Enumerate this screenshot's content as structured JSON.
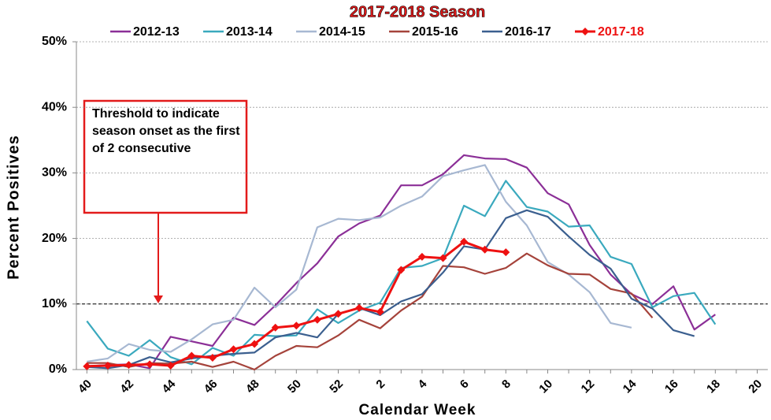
{
  "chart_data": {
    "type": "line",
    "subtitle": "2017-2018 Season",
    "x_label": "Calendar Week",
    "y_label": "Percent Positives",
    "annotation": "Threshold to indicate season onset as the first of 2 consecutive",
    "threshold": 10,
    "categories": [
      "40",
      null,
      "42",
      null,
      "44",
      null,
      "46",
      null,
      "48",
      null,
      "50",
      null,
      "52",
      null,
      "2",
      null,
      "4",
      null,
      "6",
      null,
      "8",
      null,
      "10",
      null,
      "12",
      null,
      "14",
      null,
      "16",
      null,
      "18",
      null,
      "20"
    ],
    "ylim": [
      0,
      50
    ],
    "yticks": [
      {
        "value": 0,
        "label": "0%"
      },
      {
        "value": 10,
        "label": "10%"
      },
      {
        "value": 20,
        "label": "20%"
      },
      {
        "value": 30,
        "label": "30%"
      },
      {
        "value": 40,
        "label": "40%"
      },
      {
        "value": 50,
        "label": "50%"
      }
    ],
    "grid": true,
    "legend": "top",
    "series": [
      {
        "name": "2012-13",
        "color": "#8b2f97",
        "values": [
          0.5,
          0.7,
          0.8,
          0.2,
          5.0,
          4.3,
          3.6,
          7.9,
          6.8,
          9.8,
          13.2,
          16.2,
          20.3,
          22.3,
          23.5,
          28.1,
          28.1,
          29.8,
          32.7,
          32.2,
          32.1,
          30.8,
          26.9,
          25.2,
          19.0,
          14.5,
          11.5,
          10.0,
          12.7,
          6.1,
          8.4,
          null,
          null
        ]
      },
      {
        "name": "2013-14",
        "color": "#3aa9be",
        "values": [
          7.4,
          3.2,
          2.1,
          4.5,
          1.9,
          0.8,
          3.3,
          2.1,
          5.3,
          5.1,
          5.2,
          9.2,
          7.1,
          9.0,
          10.2,
          15.5,
          15.8,
          17.0,
          25.0,
          23.4,
          28.8,
          24.8,
          24.1,
          21.8,
          22.0,
          17.2,
          16.1,
          9.5,
          11.2,
          11.7,
          6.9,
          null,
          null
        ]
      },
      {
        "name": "2014-15",
        "color": "#a7b8d2",
        "values": [
          1.2,
          1.7,
          3.9,
          3.0,
          2.7,
          4.6,
          6.9,
          7.6,
          12.5,
          9.5,
          12.2,
          21.7,
          23.0,
          22.8,
          23.2,
          25.0,
          26.4,
          29.5,
          30.4,
          31.2,
          25.6,
          22.0,
          16.4,
          14.5,
          11.8,
          7.1,
          6.4,
          null,
          null,
          null,
          null,
          null,
          null
        ]
      },
      {
        "name": "2015-16",
        "color": "#a5433b",
        "values": [
          1.0,
          1.0,
          0.4,
          1.0,
          0.9,
          1.2,
          0.4,
          1.2,
          0.0,
          2.1,
          3.6,
          3.4,
          5.2,
          7.6,
          6.3,
          9.0,
          11.1,
          15.8,
          15.6,
          14.6,
          15.5,
          17.7,
          15.9,
          14.6,
          14.5,
          12.3,
          11.6,
          7.9,
          null,
          null,
          null,
          null,
          null
        ]
      },
      {
        "name": "2016-17",
        "color": "#3b5f8f",
        "values": [
          0.4,
          0.2,
          0.7,
          1.9,
          1.1,
          1.7,
          2.1,
          2.4,
          2.6,
          4.9,
          5.6,
          4.9,
          8.5,
          9.4,
          8.3,
          10.4,
          11.5,
          14.8,
          18.8,
          18.3,
          23.1,
          24.3,
          23.3,
          20.3,
          17.5,
          15.4,
          10.8,
          9.3,
          6.0,
          5.1,
          null,
          null,
          null
        ]
      },
      {
        "name": "2017-18",
        "color": "#ee1111",
        "marker": "diamond",
        "values": [
          0.5,
          0.6,
          0.7,
          0.8,
          0.6,
          2.1,
          1.8,
          3.1,
          3.9,
          6.4,
          6.7,
          7.6,
          8.5,
          9.4,
          8.8,
          15.2,
          17.2,
          17.0,
          19.5,
          18.3,
          17.9,
          null,
          null,
          null,
          null,
          null,
          null,
          null,
          null,
          null,
          null,
          null,
          null
        ]
      }
    ]
  }
}
